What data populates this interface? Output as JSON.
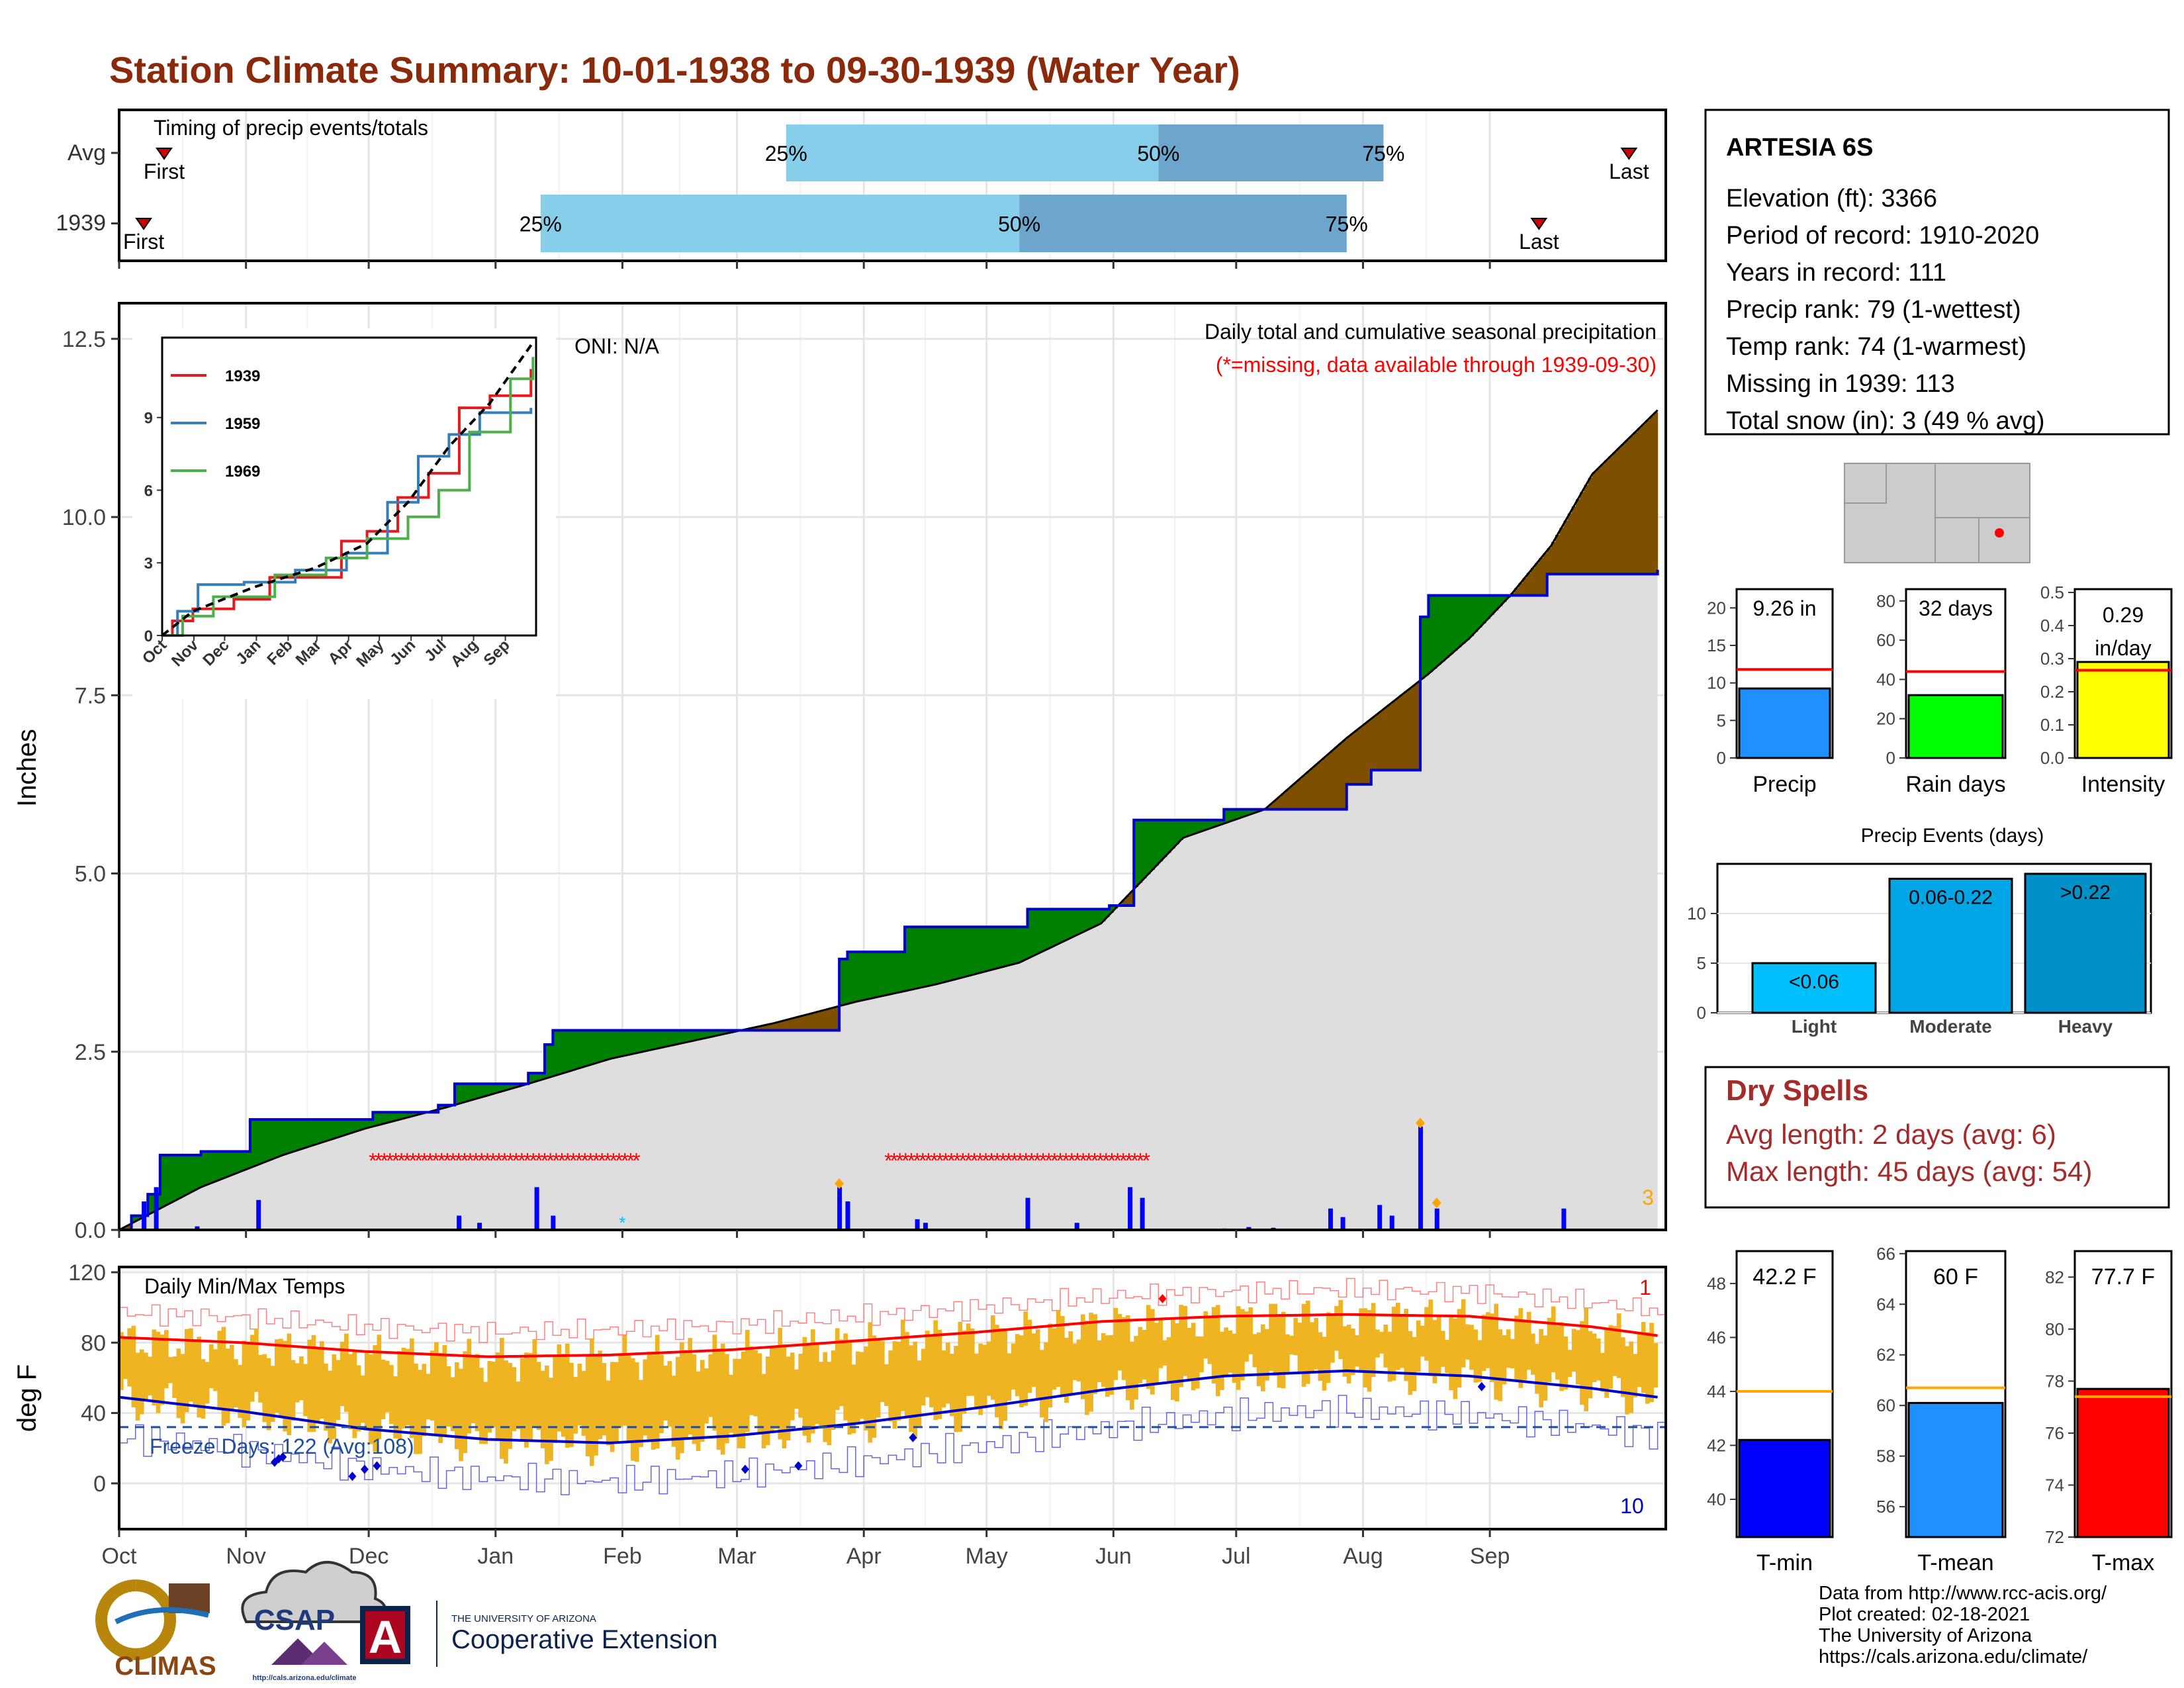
{
  "title": "Station Climate Summary: 10-01-1938 to 09-30-1939 (Water Year)",
  "colors": {
    "title": "#8B2A0B",
    "q_light": "#87CEEB",
    "q_dark": "#6CA6CD",
    "above_avg": "#008000",
    "below_avg": "#7F4F00",
    "avg_fill": "#DEDEDE",
    "obs_line": "#0000CD",
    "missing": "#FF0000",
    "snow": "#00BFFF",
    "temp_bar": "#EEB422",
    "avg_max": "#FF0000",
    "avg_min": "#0000CD",
    "dry_spell": "#A52A2A"
  },
  "timing": {
    "label": "Timing of precip events/totals",
    "rows": [
      {
        "name": "Avg",
        "first": "First",
        "last": "Last",
        "q25": "25%",
        "q50": "50%",
        "q75": "75%",
        "first_day": 11,
        "last_day": 369,
        "q25_day": 163,
        "q50_day": 254,
        "q75_day": 309
      },
      {
        "name": "1939",
        "first": "First",
        "last": "Last",
        "q25": "25%",
        "q50": "50%",
        "q75": "75%",
        "first_day": 6,
        "last_day": 347,
        "q25_day": 103,
        "q50_day": 220,
        "q75_day": 300
      }
    ]
  },
  "month_labels": [
    "Oct",
    "Nov",
    "Dec",
    "Jan",
    "Feb",
    "Mar",
    "Apr",
    "May",
    "Jun",
    "Jul",
    "Aug",
    "Sep"
  ],
  "precip_panel": {
    "ylabel": "Inches",
    "yticks": [
      "0.0",
      "2.5",
      "5.0",
      "7.5",
      "10.0",
      "12.5"
    ],
    "ylim": [
      0,
      12.5
    ],
    "header": "Daily total and cumulative seasonal precipitation",
    "missing_note": "(*=missing, data available through 1939-09-30)",
    "oni": "ONI: N/A",
    "snow_count": "3"
  },
  "inset": {
    "legend": [
      "1939",
      "1959",
      "1969"
    ],
    "legend_colors": [
      "#E41A1C",
      "#377EB8",
      "#4DAF4A"
    ],
    "yticks": [
      "0",
      "3",
      "6",
      "9"
    ],
    "xticks": [
      "Oct",
      "Nov",
      "Dec",
      "Jan",
      "Feb",
      "Mar",
      "Apr",
      "May",
      "Jun",
      "Jul",
      "Aug",
      "Sep"
    ]
  },
  "temp_panel": {
    "label": "Daily Min/Max Temps",
    "ylabel": "deg F",
    "yticks": [
      "0",
      "40",
      "80",
      "120"
    ],
    "freeze_label": "Freeze Days: 122 (Avg:108)",
    "record_high_count": "1",
    "record_low_count": "10"
  },
  "station": {
    "name": "ARTESIA 6S",
    "lines": [
      "Elevation (ft): 3366",
      "Period of record: 1910-2020",
      "Years in record: 111",
      "Precip rank: 79 (1-wettest)",
      "Temp rank: 74 (1-warmest)",
      "Missing in 1939: 113",
      "Total snow (in): 3 (49 % avg)"
    ]
  },
  "summary_bars": [
    {
      "label": "Precip",
      "value_text": "9.26 in",
      "value": 9.26,
      "avg": 11.8,
      "ymin": 0,
      "ymax": 22.5,
      "yticks": [
        "0",
        "5",
        "10",
        "15",
        "20"
      ],
      "tick_values": [
        0,
        5,
        10,
        15,
        20
      ],
      "color": "#1E90FF"
    },
    {
      "label": "Rain days",
      "value_text": "32 days",
      "value": 32,
      "avg": 44,
      "ymin": 0,
      "ymax": 86,
      "yticks": [
        "0",
        "20",
        "40",
        "60",
        "80"
      ],
      "tick_values": [
        0,
        20,
        40,
        60,
        80
      ],
      "color": "#00FF00"
    },
    {
      "label": "Intensity",
      "value_text": "0.29 in/day",
      "value_line1": "0.29",
      "value_line2": "in/day",
      "value": 0.29,
      "avg": 0.265,
      "ymin": 0,
      "ymax": 0.51,
      "yticks": [
        "0.0",
        "0.1",
        "0.2",
        "0.3",
        "0.4",
        "0.5"
      ],
      "tick_values": [
        0,
        0.1,
        0.2,
        0.3,
        0.4,
        0.5
      ],
      "color": "#FFFF00"
    }
  ],
  "precip_events": {
    "title": "Precip Events (days)",
    "yticks": [
      "0",
      "5",
      "10"
    ],
    "categories": [
      "Light",
      "Moderate",
      "Heavy"
    ],
    "bar_labels": [
      "<0.06",
      "0.06-0.22",
      ">0.22"
    ],
    "values": [
      5,
      13.5,
      14
    ],
    "colors": [
      "#00BFFF",
      "#00A5E5",
      "#0090C8"
    ]
  },
  "dry_spells": {
    "title": "Dry Spells",
    "avg_line": "Avg length: 2 days (avg: 6)",
    "max_line": "Max length: 45 days (avg: 54)"
  },
  "temp_bars": [
    {
      "label": "T-min",
      "value_text": "42.2 F",
      "value": 42.2,
      "avg": 44.0,
      "ymin": 38.6,
      "ymax": 49.2,
      "yticks": [
        "40",
        "42",
        "44",
        "46",
        "48"
      ],
      "tick_values": [
        40,
        42,
        44,
        46,
        48
      ],
      "color": "#0000FF"
    },
    {
      "label": "T-mean",
      "value_text": "60 F",
      "value": 60.1,
      "avg": 60.7,
      "ymin": 54.8,
      "ymax": 66.1,
      "yticks": [
        "56",
        "58",
        "60",
        "62",
        "64",
        "66"
      ],
      "tick_values": [
        56,
        58,
        60,
        62,
        64,
        66
      ],
      "color": "#1E90FF"
    },
    {
      "label": "T-max",
      "value_text": "77.7 F",
      "value": 77.7,
      "avg": 77.4,
      "ymin": 72.0,
      "ymax": 83.0,
      "yticks": [
        "72",
        "74",
        "76",
        "78",
        "80",
        "82"
      ],
      "tick_values": [
        72,
        74,
        76,
        78,
        80,
        82
      ],
      "color": "#FF0000"
    }
  ],
  "footer": {
    "lines": [
      "Data from http://www.rcc-acis.org/",
      "Plot created: 02-18-2021",
      "The University of Arizona",
      "https://cals.arizona.edu/climate/"
    ],
    "climas": "CLIMAS",
    "csap": "CSAP",
    "csap_url": "http://cals.arizona.edu/climate",
    "ua_small": "THE UNIVERSITY OF ARIZONA",
    "ua_big": "Cooperative Extension"
  },
  "chart_data": {
    "type": "area",
    "title": "Station Climate Summary: 10-01-1938 to 09-30-1939 (Water Year)",
    "x_unit": "day of water year (Oct 1 = 0)",
    "ylabel": "Inches",
    "ylim": [
      0,
      12.5
    ],
    "cum_avg_precip": [
      [
        0,
        0
      ],
      [
        20,
        0.6
      ],
      [
        40,
        1.05
      ],
      [
        60,
        1.42
      ],
      [
        80,
        1.72
      ],
      [
        100,
        2.05
      ],
      [
        120,
        2.4
      ],
      [
        140,
        2.65
      ],
      [
        160,
        2.9
      ],
      [
        180,
        3.2
      ],
      [
        200,
        3.45
      ],
      [
        220,
        3.75
      ],
      [
        240,
        4.3
      ],
      [
        260,
        5.5
      ],
      [
        280,
        5.9
      ],
      [
        300,
        6.9
      ],
      [
        320,
        7.8
      ],
      [
        330,
        8.3
      ],
      [
        340,
        8.9
      ],
      [
        350,
        9.6
      ],
      [
        360,
        10.6
      ],
      [
        376,
        11.5
      ]
    ],
    "cum_1939_precip": [
      [
        0,
        0
      ],
      [
        3,
        0.2
      ],
      [
        7,
        0.5
      ],
      [
        10,
        1.05
      ],
      [
        20,
        1.1
      ],
      [
        32,
        1.55
      ],
      [
        62,
        1.65
      ],
      [
        78,
        1.75
      ],
      [
        82,
        2.05
      ],
      [
        100,
        2.2
      ],
      [
        104,
        2.6
      ],
      [
        106,
        2.8
      ],
      [
        120,
        2.8
      ],
      [
        128,
        2.8
      ],
      [
        150,
        2.8
      ],
      [
        170,
        2.8
      ],
      [
        176,
        3.3
      ],
      [
        176,
        3.8
      ],
      [
        178,
        3.9
      ],
      [
        192,
        4.25
      ],
      [
        222,
        4.4
      ],
      [
        222,
        4.5
      ],
      [
        232,
        4.5
      ],
      [
        242,
        4.55
      ],
      [
        248,
        5.75
      ],
      [
        262,
        5.75
      ],
      [
        270,
        5.9
      ],
      [
        290,
        5.9
      ],
      [
        300,
        6.25
      ],
      [
        306,
        6.45
      ],
      [
        318,
        6.7
      ],
      [
        318,
        7.25
      ],
      [
        318,
        8.6
      ],
      [
        320,
        8.9
      ],
      [
        349,
        9.2
      ],
      [
        376,
        9.26
      ]
    ],
    "daily_precip": [
      [
        6,
        0.4
      ],
      [
        9,
        0.6
      ],
      [
        19,
        0.05
      ],
      [
        34,
        0.42
      ],
      [
        83,
        0.2
      ],
      [
        88,
        0.1
      ],
      [
        102,
        0.6
      ],
      [
        106,
        0.2
      ],
      [
        176,
        0.6
      ],
      [
        178,
        0.4
      ],
      [
        195,
        0.15
      ],
      [
        197,
        0.1
      ],
      [
        222,
        0.45
      ],
      [
        234,
        0.1
      ],
      [
        247,
        0.6
      ],
      [
        250,
        0.45
      ],
      [
        270,
        0.02
      ],
      [
        276,
        0.04
      ],
      [
        282,
        0.03
      ],
      [
        296,
        0.3
      ],
      [
        299,
        0.18
      ],
      [
        308,
        0.35
      ],
      [
        311,
        0.2
      ],
      [
        318,
        1.45
      ],
      [
        322,
        0.3
      ],
      [
        353,
        0.3
      ]
    ],
    "missing_ranges": [
      [
        62,
        127
      ],
      [
        188,
        252
      ]
    ],
    "temperature": {
      "ylim": [
        -20,
        120
      ],
      "freeze_days": 122,
      "freeze_days_avg": 108,
      "avg_max": [
        [
          0,
          83
        ],
        [
          30,
          80
        ],
        [
          60,
          75
        ],
        [
          90,
          72
        ],
        [
          120,
          73
        ],
        [
          150,
          76
        ],
        [
          180,
          81
        ],
        [
          210,
          86
        ],
        [
          240,
          92
        ],
        [
          270,
          95
        ],
        [
          300,
          96
        ],
        [
          330,
          95
        ],
        [
          360,
          89
        ],
        [
          376,
          84
        ]
      ],
      "avg_min": [
        [
          0,
          49
        ],
        [
          30,
          41
        ],
        [
          60,
          31
        ],
        [
          90,
          25
        ],
        [
          120,
          23
        ],
        [
          150,
          27
        ],
        [
          180,
          34
        ],
        [
          210,
          43
        ],
        [
          240,
          53
        ],
        [
          270,
          61
        ],
        [
          300,
          64
        ],
        [
          330,
          61
        ],
        [
          360,
          54
        ],
        [
          376,
          49
        ]
      ]
    }
  }
}
